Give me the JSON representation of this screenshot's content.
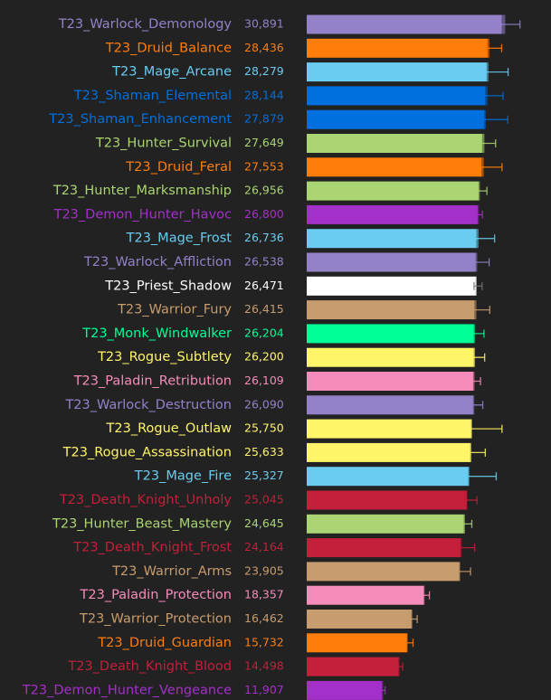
{
  "chart_data": {
    "type": "bar",
    "orientation": "horizontal",
    "title": "",
    "xlabel": "",
    "ylabel": "",
    "xlim": [
      0,
      33000
    ],
    "grid": false,
    "legend": "none",
    "background": "#222222",
    "categories": [
      "T23_Warlock_Demonology",
      "T23_Druid_Balance",
      "T23_Mage_Arcane",
      "T23_Shaman_Elemental",
      "T23_Shaman_Enhancement",
      "T23_Hunter_Survival",
      "T23_Druid_Feral",
      "T23_Hunter_Marksmanship",
      "T23_Demon_Hunter_Havoc",
      "T23_Mage_Frost",
      "T23_Warlock_Affliction",
      "T23_Priest_Shadow",
      "T23_Warrior_Fury",
      "T23_Monk_Windwalker",
      "T23_Rogue_Subtlety",
      "T23_Paladin_Retribution",
      "T23_Warlock_Destruction",
      "T23_Rogue_Outlaw",
      "T23_Rogue_Assassination",
      "T23_Mage_Fire",
      "T23_Death_Knight_Unholy",
      "T23_Hunter_Beast_Mastery",
      "T23_Death_Knight_Frost",
      "T23_Warrior_Arms",
      "T23_Paladin_Protection",
      "T23_Warrior_Protection",
      "T23_Druid_Guardian",
      "T23_Death_Knight_Blood",
      "T23_Demon_Hunter_Vengeance"
    ],
    "value_labels": [
      "30,891",
      "28,436",
      "28,279",
      "28,144",
      "27,879",
      "27,649",
      "27,553",
      "26,956",
      "26,800",
      "26,736",
      "26,538",
      "26,471",
      "26,415",
      "26,204",
      "26,200",
      "26,109",
      "26,090",
      "25,750",
      "25,633",
      "25,327",
      "25,045",
      "24,645",
      "24,164",
      "23,905",
      "18,357",
      "16,462",
      "15,732",
      "14,498",
      "11,907"
    ],
    "values": [
      30891,
      28436,
      28279,
      28144,
      27879,
      27649,
      27553,
      26956,
      26800,
      26736,
      26538,
      26471,
      26415,
      26204,
      26200,
      26109,
      26090,
      25750,
      25633,
      25327,
      25045,
      24645,
      24164,
      23905,
      18357,
      16462,
      15732,
      14498,
      11907
    ],
    "colors": [
      "#9482C9",
      "#FF7D0A",
      "#69CCF0",
      "#0070DE",
      "#0070DE",
      "#ABD473",
      "#FF7D0A",
      "#ABD473",
      "#A330C9",
      "#69CCF0",
      "#9482C9",
      "#FFFFFF",
      "#C79C6E",
      "#00FF96",
      "#FFF569",
      "#F58CBA",
      "#9482C9",
      "#FFF569",
      "#FFF569",
      "#69CCF0",
      "#C41F3B",
      "#ABD473",
      "#C41F3B",
      "#C79C6E",
      "#F58CBA",
      "#C79C6E",
      "#FF7D0A",
      "#C41F3B",
      "#A330C9"
    ],
    "error_low": [
      29700,
      27650,
      26500,
      26150,
      26000,
      26300,
      26000,
      26050,
      26250,
      25650,
      25350,
      26050,
      25050,
      25150,
      25450,
      25250,
      25100,
      23700,
      23800,
      23250,
      24500,
      24250,
      22950,
      22850,
      17550,
      15850,
      15100,
      14050,
      11400
    ],
    "error_high": [
      33200,
      30350,
      31350,
      30550,
      31300,
      29400,
      30400,
      28050,
      27350,
      29250,
      28400,
      27300,
      28500,
      27600,
      27700,
      27050,
      27400,
      30400,
      27800,
      29500,
      26500,
      25700,
      26150,
      25500,
      19100,
      17200,
      16550,
      14950,
      12200
    ],
    "mid_marker": [
      30350,
      28150,
      28000,
      27800,
      27650,
      27300,
      27200,
      26750,
      26600,
      26400,
      26300,
      26300,
      26100,
      26000,
      26000,
      25900,
      25900,
      25600,
      25450,
      25150,
      24900,
      24450,
      23950,
      23750,
      18200,
      16300,
      15600,
      14300,
      11700
    ]
  }
}
